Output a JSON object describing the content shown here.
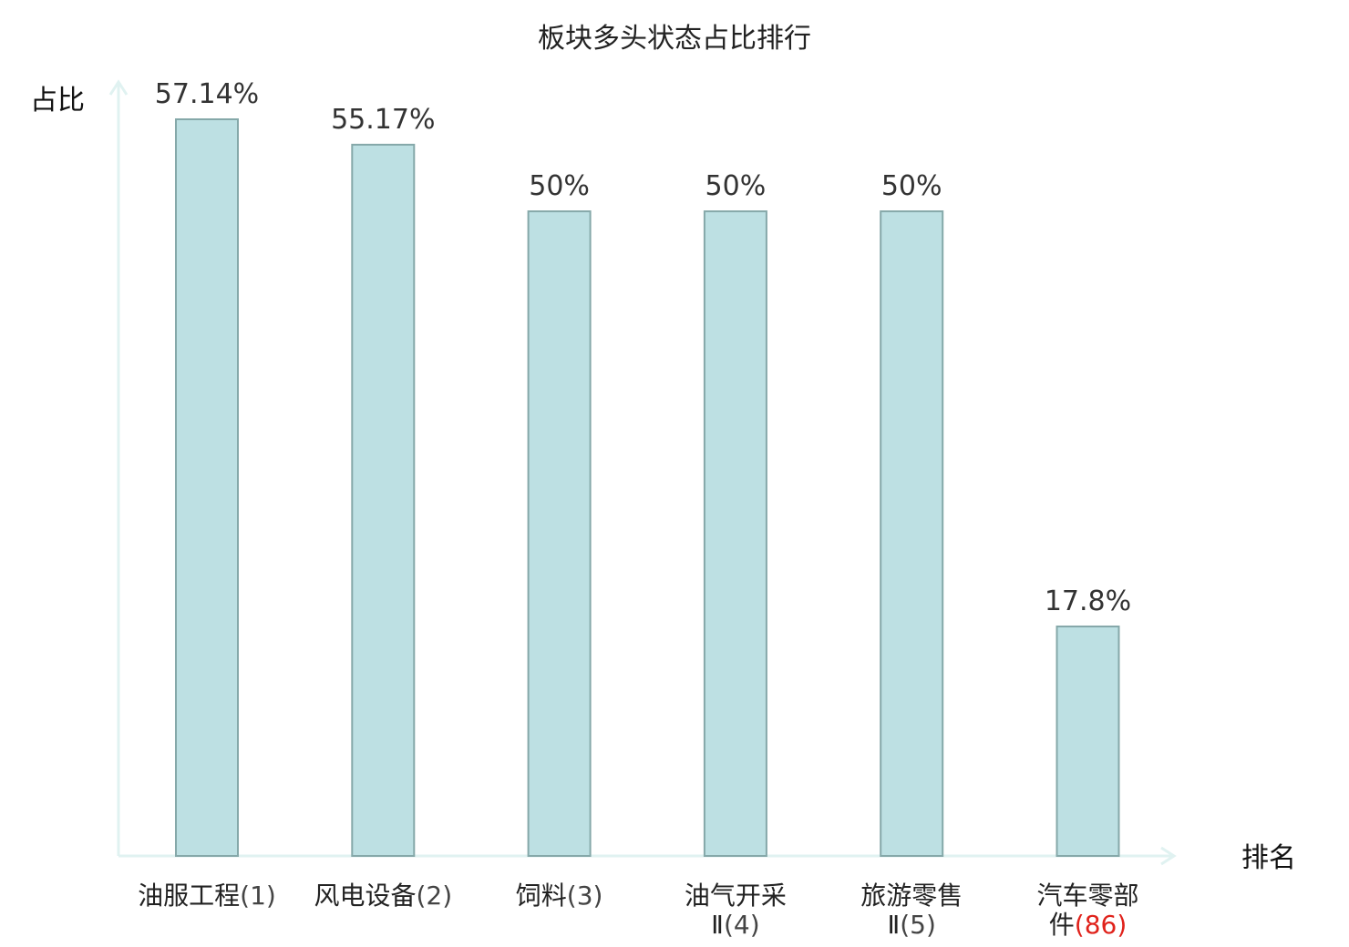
{
  "chart_data": {
    "type": "bar",
    "title": "板块多头状态占比排行",
    "ylabel": "占比",
    "xlabel": "排名",
    "ylim": [
      0,
      60
    ],
    "categories": [
      {
        "name_lines": [
          "油服工程"
        ],
        "rank": "(1)"
      },
      {
        "name_lines": [
          "风电设备"
        ],
        "rank": "(2)"
      },
      {
        "name_lines": [
          "饲料"
        ],
        "rank": "(3)"
      },
      {
        "name_lines": [
          "油气开采",
          "Ⅱ"
        ],
        "rank": "(4)"
      },
      {
        "name_lines": [
          "旅游零售",
          "Ⅱ"
        ],
        "rank": "(5)"
      },
      {
        "name_lines": [
          "汽车零部",
          "件"
        ],
        "rank": "(86)",
        "highlight": true
      }
    ],
    "values": [
      57.14,
      55.17,
      50,
      50,
      50,
      17.8
    ],
    "value_labels": [
      "57.14%",
      "55.17%",
      "50%",
      "50%",
      "50%",
      "17.8%"
    ],
    "grid": false,
    "colors": {
      "bar_fill": "#bde0e3",
      "bar_stroke": "#85a8a9",
      "axis": "#e0f2f1",
      "highlight": "#e0221b",
      "rank_text": "#444444"
    }
  }
}
